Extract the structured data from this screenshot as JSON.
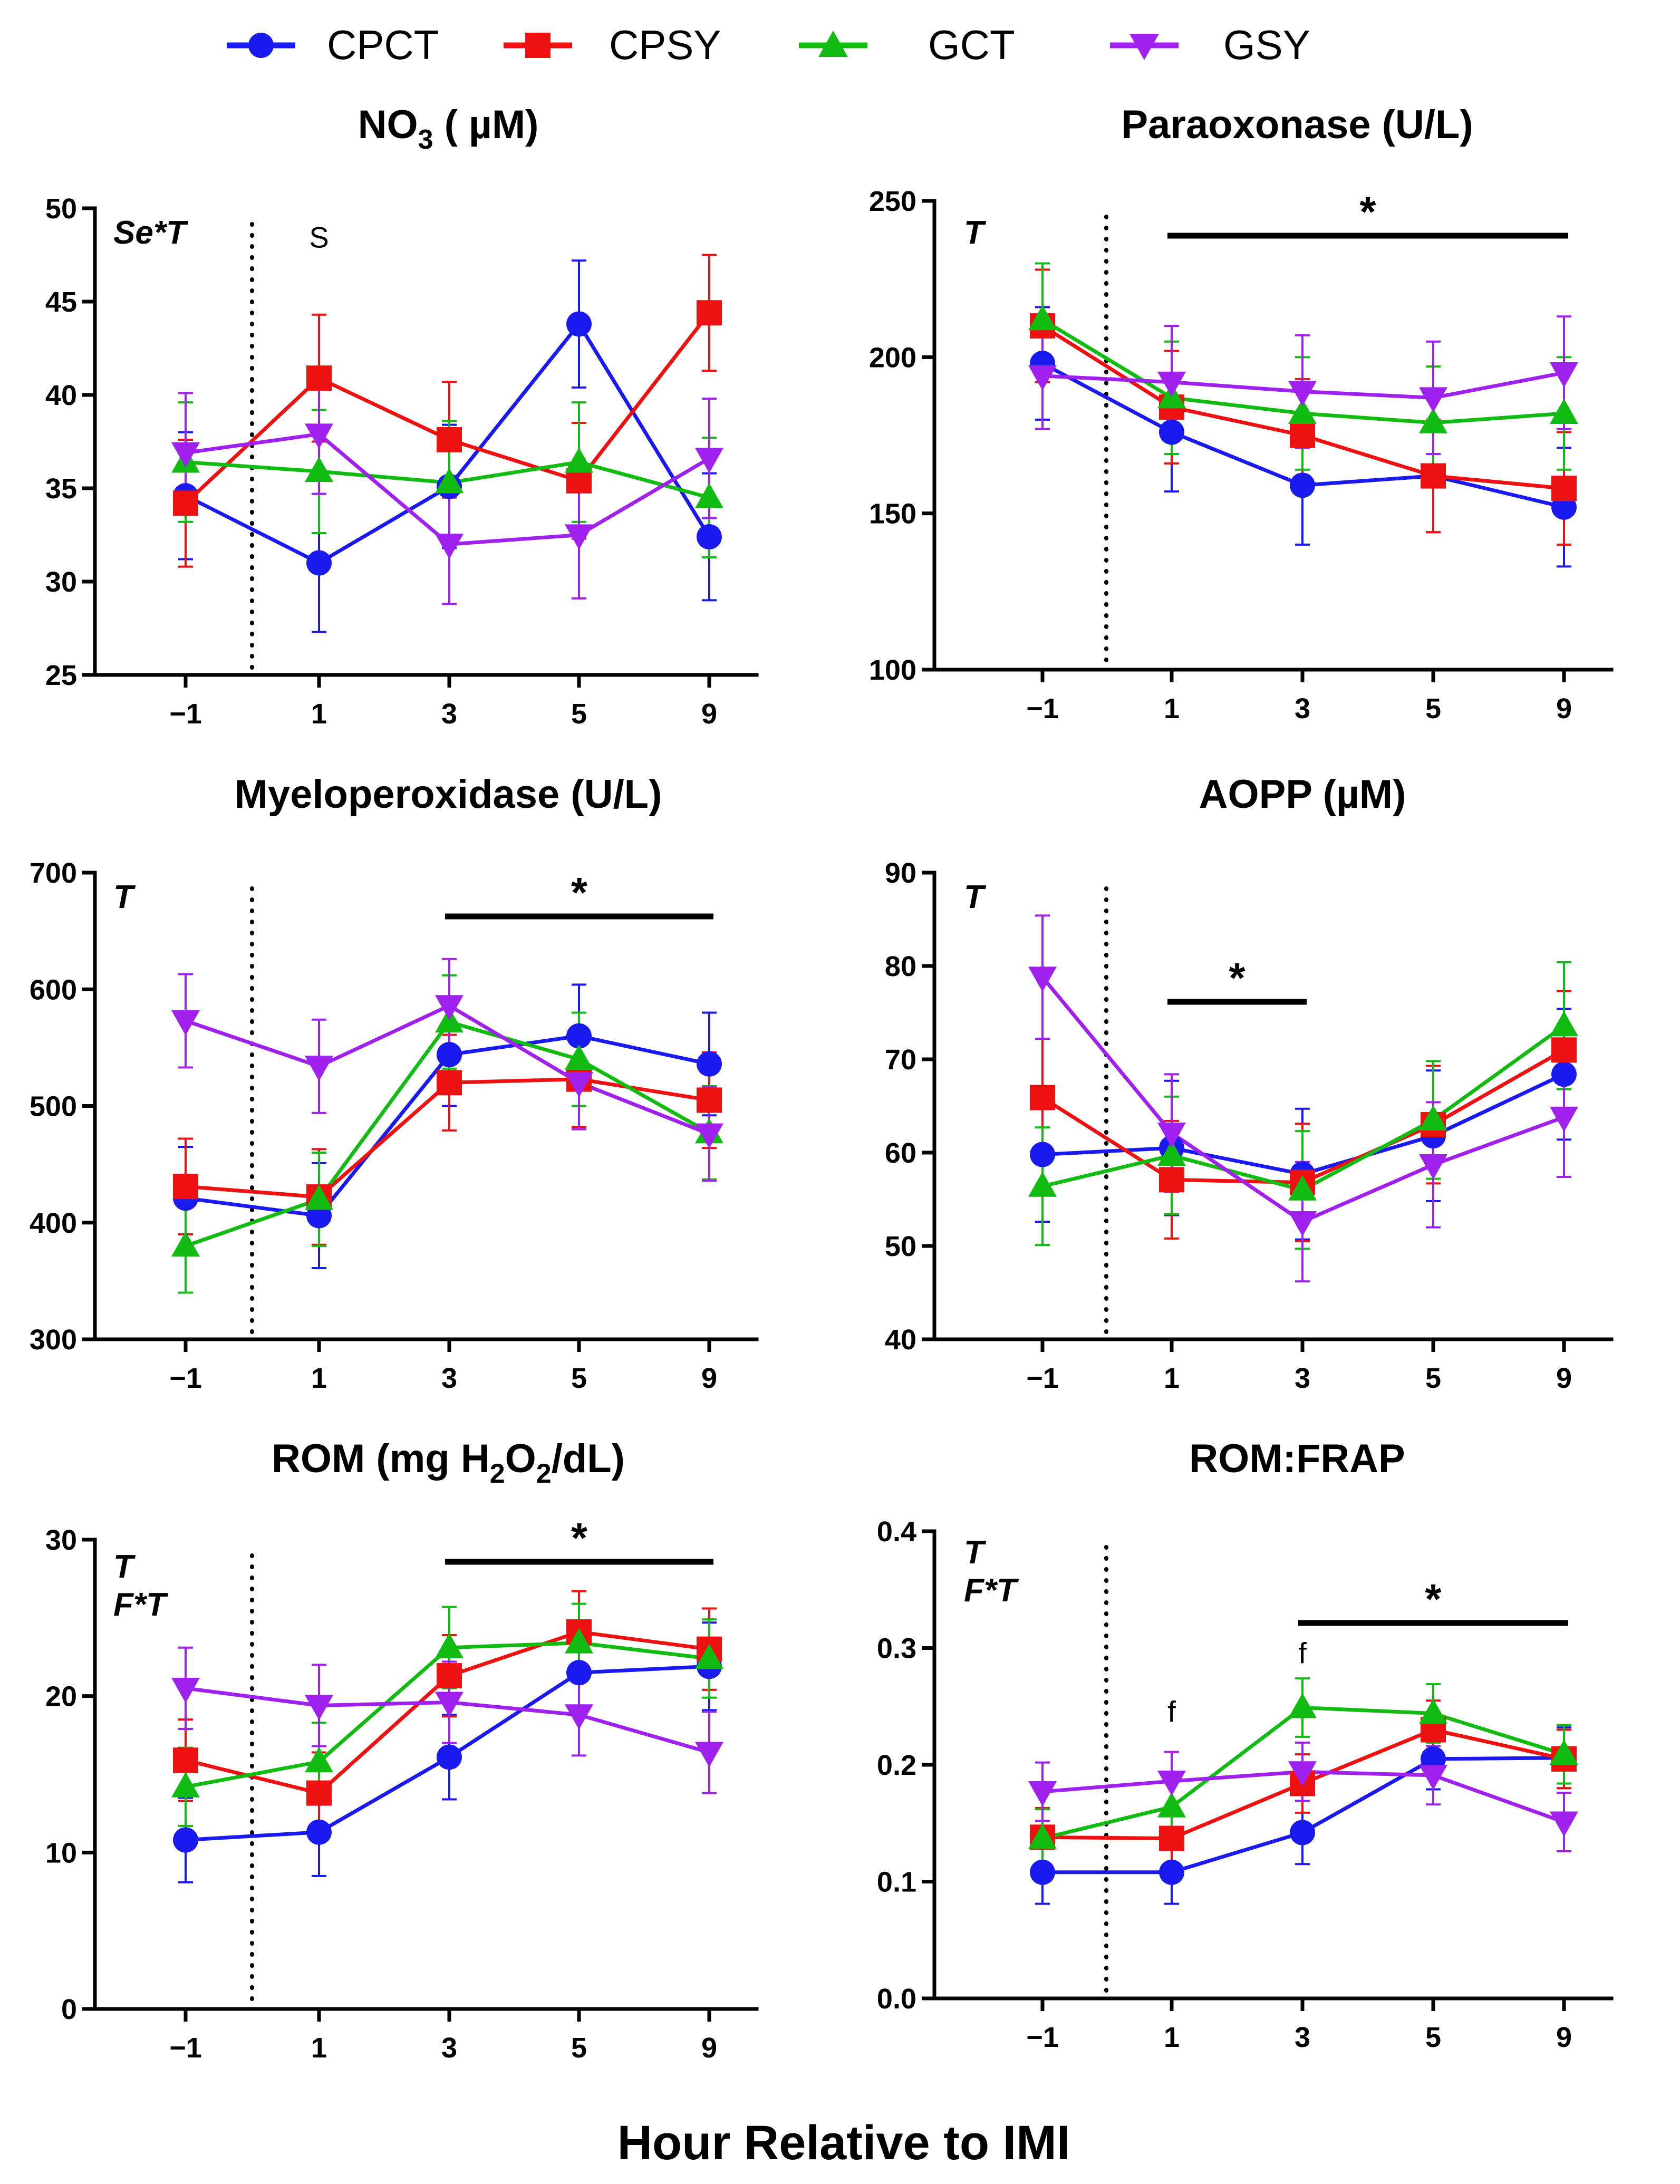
{
  "colors": {
    "CPCT": "#1a1aee",
    "CPSY": "#ee1111",
    "GCT": "#11bb11",
    "GSY": "#a020ee"
  },
  "legend": [
    {
      "name": "CPCT",
      "marker": "circle"
    },
    {
      "name": "CPSY",
      "marker": "square"
    },
    {
      "name": "GCT",
      "marker": "triangle-up"
    },
    {
      "name": "GSY",
      "marker": "triangle-down"
    }
  ],
  "xlabel": "Hour Relative to IMI",
  "chart_data": [
    {
      "type": "line",
      "title": "NO3 ( µM)",
      "title_main": "NO",
      "title_sub": "3",
      "title_rest": " ( µM)",
      "categories": [
        "−1",
        "1",
        "3",
        "5",
        "9"
      ],
      "ylim": [
        25,
        50
      ],
      "yticks": [
        "25",
        "30",
        "35",
        "40",
        "45",
        "50"
      ],
      "effects": [
        "Se*T"
      ],
      "annotations": [
        {
          "text": "S",
          "category": 1,
          "y": 48.4
        }
      ],
      "sig_bar": null,
      "series": [
        {
          "name": "CPCT",
          "values": [
            34.6,
            31.0,
            35.1,
            43.8,
            32.4
          ],
          "errors": [
            3.4,
            3.7,
            3.3,
            3.4,
            3.4
          ]
        },
        {
          "name": "CPSY",
          "values": [
            34.2,
            40.9,
            37.6,
            35.4,
            44.4
          ],
          "errors": [
            3.4,
            3.4,
            3.1,
            3.1,
            3.1
          ]
        },
        {
          "name": "GCT",
          "values": [
            36.4,
            35.9,
            35.3,
            36.4,
            34.5
          ],
          "errors": [
            3.2,
            3.3,
            3.3,
            3.2,
            3.2
          ]
        },
        {
          "name": "GSY",
          "values": [
            36.9,
            37.9,
            32.0,
            32.5,
            36.6
          ],
          "errors": [
            3.2,
            3.2,
            3.2,
            3.4,
            3.2
          ]
        }
      ]
    },
    {
      "type": "line",
      "title": "Paraoxonase (U/L)",
      "categories": [
        "−1",
        "1",
        "3",
        "5",
        "9"
      ],
      "ylim": [
        100,
        250
      ],
      "yticks": [
        "100",
        "150",
        "200",
        "250"
      ],
      "effects": [
        "T"
      ],
      "annotations": [],
      "sig_bar": {
        "from": 1,
        "to": 4,
        "label": "*"
      },
      "series": [
        {
          "name": "CPCT",
          "values": [
            198,
            176,
            159,
            162,
            152
          ],
          "errors": [
            18,
            19,
            19,
            18,
            19
          ]
        },
        {
          "name": "CPSY",
          "values": [
            210,
            184,
            175,
            162,
            158
          ],
          "errors": [
            18,
            18,
            18,
            18,
            18
          ]
        },
        {
          "name": "GCT",
          "values": [
            212,
            187,
            182,
            179,
            182
          ],
          "errors": [
            18,
            18,
            18,
            18,
            18
          ]
        },
        {
          "name": "GSY",
          "values": [
            194,
            192,
            189,
            187,
            195
          ],
          "errors": [
            17,
            18,
            18,
            18,
            18
          ]
        }
      ]
    },
    {
      "type": "line",
      "title": "Myeloperoxidase (U/L)",
      "categories": [
        "−1",
        "1",
        "3",
        "5",
        "9"
      ],
      "ylim": [
        300,
        700
      ],
      "yticks": [
        "300",
        "400",
        "500",
        "600",
        "700"
      ],
      "effects": [
        "T"
      ],
      "annotations": [],
      "sig_bar": {
        "from": 2,
        "to": 4,
        "label": "*"
      },
      "series": [
        {
          "name": "CPCT",
          "values": [
            421,
            406,
            544,
            560,
            536
          ],
          "errors": [
            44,
            45,
            44,
            44,
            44
          ]
        },
        {
          "name": "CPSY",
          "values": [
            431,
            422,
            520,
            523,
            505
          ],
          "errors": [
            41,
            41,
            41,
            41,
            41
          ]
        },
        {
          "name": "GCT",
          "values": [
            380,
            420,
            572,
            540,
            477
          ],
          "errors": [
            40,
            40,
            40,
            40,
            40
          ]
        },
        {
          "name": "GSY",
          "values": [
            573,
            534,
            586,
            520,
            476
          ],
          "errors": [
            40,
            40,
            40,
            40,
            40
          ]
        }
      ]
    },
    {
      "type": "line",
      "title": "AOPP (µM)",
      "categories": [
        "−1",
        "1",
        "3",
        "5",
        "9"
      ],
      "ylim": [
        40,
        90
      ],
      "yticks": [
        "40",
        "50",
        "60",
        "70",
        "80",
        "90"
      ],
      "effects": [
        "T"
      ],
      "annotations": [],
      "sig_bar": {
        "from": 1,
        "to": 2,
        "label": "*"
      },
      "series": [
        {
          "name": "CPCT",
          "values": [
            59.8,
            60.5,
            57.7,
            61.8,
            68.4
          ],
          "errors": [
            7.2,
            7.2,
            7.0,
            7.0,
            7.0
          ]
        },
        {
          "name": "CPSY",
          "values": [
            65.9,
            57.1,
            56.8,
            63.0,
            71.0
          ],
          "errors": [
            6.3,
            6.3,
            6.3,
            6.3,
            6.3
          ]
        },
        {
          "name": "GCT",
          "values": [
            56.4,
            59.7,
            56.0,
            63.5,
            73.6
          ],
          "errors": [
            6.3,
            6.3,
            6.3,
            6.3,
            6.8
          ]
        },
        {
          "name": "GSY",
          "values": [
            78.8,
            62.1,
            52.6,
            58.7,
            63.8
          ],
          "errors": [
            6.6,
            6.3,
            6.4,
            6.7,
            6.4
          ]
        }
      ]
    },
    {
      "type": "line",
      "title": "ROM (mg H2O2/dL)",
      "title_parts": [
        "ROM (mg H",
        "2",
        "O",
        "2",
        "/dL)"
      ],
      "categories": [
        "−1",
        "1",
        "3",
        "5",
        "9"
      ],
      "ylim": [
        0,
        30
      ],
      "yticks": [
        "0",
        "10",
        "20",
        "30"
      ],
      "effects": [
        "T",
        "F*T"
      ],
      "annotations": [],
      "sig_bar": {
        "from": 2,
        "to": 4,
        "label": "*"
      },
      "series": [
        {
          "name": "CPCT",
          "values": [
            10.8,
            11.3,
            16.1,
            21.5,
            21.9
          ],
          "errors": [
            2.7,
            2.8,
            2.7,
            2.7,
            2.8
          ]
        },
        {
          "name": "CPSY",
          "values": [
            15.9,
            13.8,
            21.3,
            24.1,
            23.0
          ],
          "errors": [
            2.6,
            2.6,
            2.6,
            2.6,
            2.6
          ]
        },
        {
          "name": "GCT",
          "values": [
            14.2,
            15.8,
            23.1,
            23.4,
            22.4
          ],
          "errors": [
            2.5,
            2.5,
            2.6,
            2.5,
            2.5
          ]
        },
        {
          "name": "GSY",
          "values": [
            20.5,
            19.4,
            19.6,
            18.8,
            16.4
          ],
          "errors": [
            2.6,
            2.6,
            2.6,
            2.6,
            2.6
          ]
        }
      ]
    },
    {
      "type": "line",
      "title": "ROM:FRAP",
      "categories": [
        "−1",
        "1",
        "3",
        "5",
        "9"
      ],
      "ylim": [
        0,
        0.4
      ],
      "yticks": [
        "0.0",
        "0.1",
        "0.2",
        "0.3",
        "0.4"
      ],
      "effects": [
        "T",
        "F*T"
      ],
      "annotations": [
        {
          "text": "f",
          "category": 1,
          "y": 0.245
        },
        {
          "text": "f",
          "category": 2,
          "y": 0.295
        }
      ],
      "sig_bar": {
        "from": 2,
        "to": 4,
        "label": "*"
      },
      "series": [
        {
          "name": "CPCT",
          "values": [
            0.108,
            0.108,
            0.142,
            0.205,
            0.206
          ],
          "errors": [
            0.027,
            0.027,
            0.027,
            0.026,
            0.026
          ]
        },
        {
          "name": "CPSY",
          "values": [
            0.138,
            0.137,
            0.184,
            0.23,
            0.205
          ],
          "errors": [
            0.025,
            0.025,
            0.025,
            0.025,
            0.025
          ]
        },
        {
          "name": "GCT",
          "values": [
            0.137,
            0.164,
            0.249,
            0.244,
            0.209
          ],
          "errors": [
            0.025,
            0.025,
            0.025,
            0.025,
            0.025
          ]
        },
        {
          "name": "GSY",
          "values": [
            0.177,
            0.186,
            0.194,
            0.191,
            0.151
          ],
          "errors": [
            0.025,
            0.025,
            0.025,
            0.025,
            0.025
          ]
        }
      ]
    }
  ]
}
